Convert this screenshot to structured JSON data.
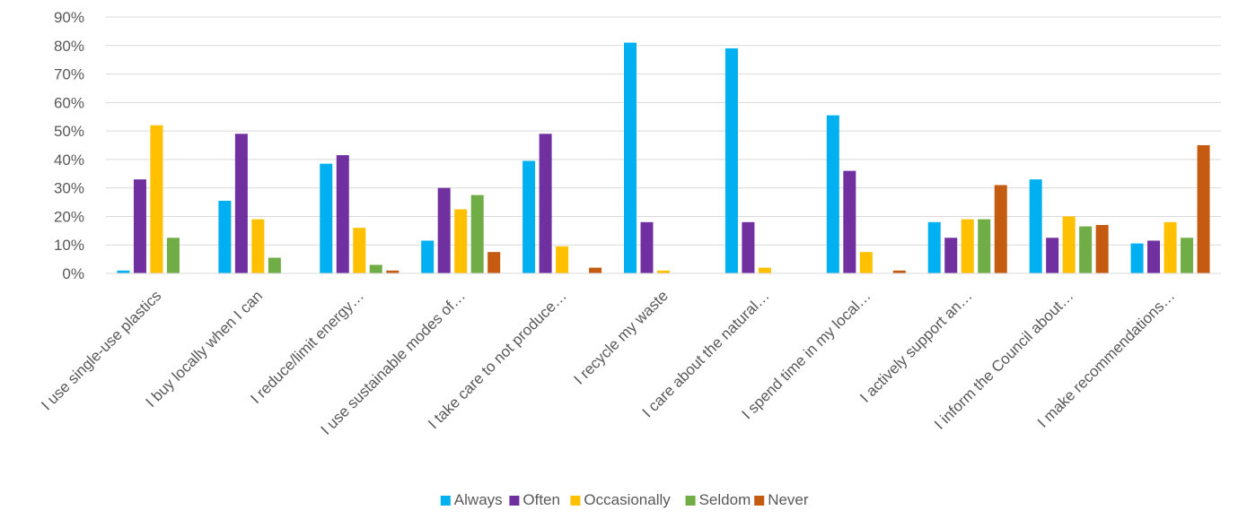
{
  "chart_data": {
    "type": "bar",
    "title": "",
    "xlabel": "",
    "ylabel": "",
    "ylim": [
      0,
      90
    ],
    "ytick_step": 10,
    "ytick_format": "percent",
    "grid": true,
    "legend_position": "bottom",
    "categories": [
      "I use single-use plastics",
      "I buy locally when I can",
      "I reduce/limit energy…",
      "I use sustainable modes of…",
      "I take care to not produce…",
      "I recycle my waste",
      "I care about the natural…",
      "I spend time in my local…",
      "I actively support an…",
      "I inform the Council about…",
      "I make recommendations…"
    ],
    "series": [
      {
        "name": "Always",
        "color": "#00b0f0",
        "values": [
          1,
          25.5,
          38.5,
          11.5,
          39.5,
          81,
          79,
          55.5,
          18,
          33,
          10.5
        ]
      },
      {
        "name": "Often",
        "color": "#7030a0",
        "values": [
          33,
          49,
          41.5,
          30,
          49,
          18,
          18,
          36,
          12.5,
          12.5,
          11.5
        ]
      },
      {
        "name": "Occasionally",
        "color": "#ffc000",
        "values": [
          52,
          19,
          16,
          22.5,
          9.5,
          1,
          2,
          7.5,
          19,
          20,
          18
        ]
      },
      {
        "name": "Seldom",
        "color": "#70ad47",
        "values": [
          12.5,
          5.5,
          3,
          27.5,
          0,
          0,
          0,
          0,
          19,
          16.5,
          12.5
        ]
      },
      {
        "name": "Never",
        "color": "#c55a11",
        "values": [
          0,
          0,
          1,
          7.5,
          2,
          0,
          0,
          1,
          31,
          17,
          45
        ]
      }
    ]
  }
}
